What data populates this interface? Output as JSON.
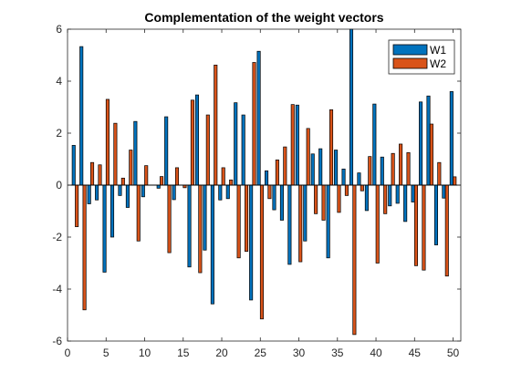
{
  "chart_data": {
    "type": "bar",
    "title": "Complementation of the weight vectors",
    "xlabel": "",
    "ylabel": "",
    "xlim": [
      0,
      51
    ],
    "ylim": [
      -6,
      6
    ],
    "xticks": [
      0,
      5,
      10,
      15,
      20,
      25,
      30,
      35,
      40,
      45,
      50
    ],
    "yticks": [
      -6,
      -4,
      -2,
      0,
      2,
      4,
      6
    ],
    "grid": false,
    "legend_position": "top-right",
    "x": [
      1,
      2,
      3,
      4,
      5,
      6,
      7,
      8,
      9,
      10,
      11,
      12,
      13,
      14,
      15,
      16,
      17,
      18,
      19,
      20,
      21,
      22,
      23,
      24,
      25,
      26,
      27,
      28,
      29,
      30,
      31,
      32,
      33,
      34,
      35,
      36,
      37,
      38,
      39,
      40,
      41,
      42,
      43,
      44,
      45,
      46,
      47,
      48,
      49,
      50
    ],
    "series": [
      {
        "name": "W1",
        "color": "#0072BD",
        "values": [
          1.53,
          5.33,
          -0.72,
          -0.57,
          -3.35,
          -2.0,
          -0.4,
          -0.86,
          2.45,
          -0.45,
          0.0,
          -0.12,
          2.63,
          -0.56,
          0.0,
          -3.15,
          3.47,
          -2.5,
          -4.57,
          -0.57,
          -0.52,
          3.17,
          2.7,
          -4.42,
          5.15,
          0.55,
          -0.95,
          -1.35,
          -3.05,
          3.08,
          -2.15,
          1.2,
          1.4,
          -2.8,
          1.35,
          0.62,
          6.0,
          0.47,
          -0.98,
          3.12,
          1.08,
          -0.8,
          -0.7,
          -1.4,
          -0.65,
          3.2,
          3.43,
          -2.3,
          -0.5,
          3.6
        ]
      },
      {
        "name": "W2",
        "color": "#D95319",
        "values": [
          -1.6,
          -4.8,
          0.87,
          0.78,
          3.3,
          2.38,
          0.27,
          1.35,
          -2.15,
          0.75,
          0.0,
          0.33,
          -2.6,
          0.67,
          -0.1,
          3.27,
          -3.37,
          2.7,
          4.62,
          0.67,
          0.2,
          -2.8,
          -2.55,
          4.72,
          -5.15,
          -0.52,
          0.97,
          1.47,
          3.1,
          -2.95,
          2.18,
          -1.1,
          -1.35,
          2.9,
          -1.05,
          -0.4,
          -5.75,
          -0.22,
          1.1,
          -3.0,
          -1.1,
          1.22,
          1.58,
          1.25,
          -3.1,
          -3.27,
          2.35,
          0.87,
          -3.5,
          0.32
        ]
      }
    ]
  }
}
